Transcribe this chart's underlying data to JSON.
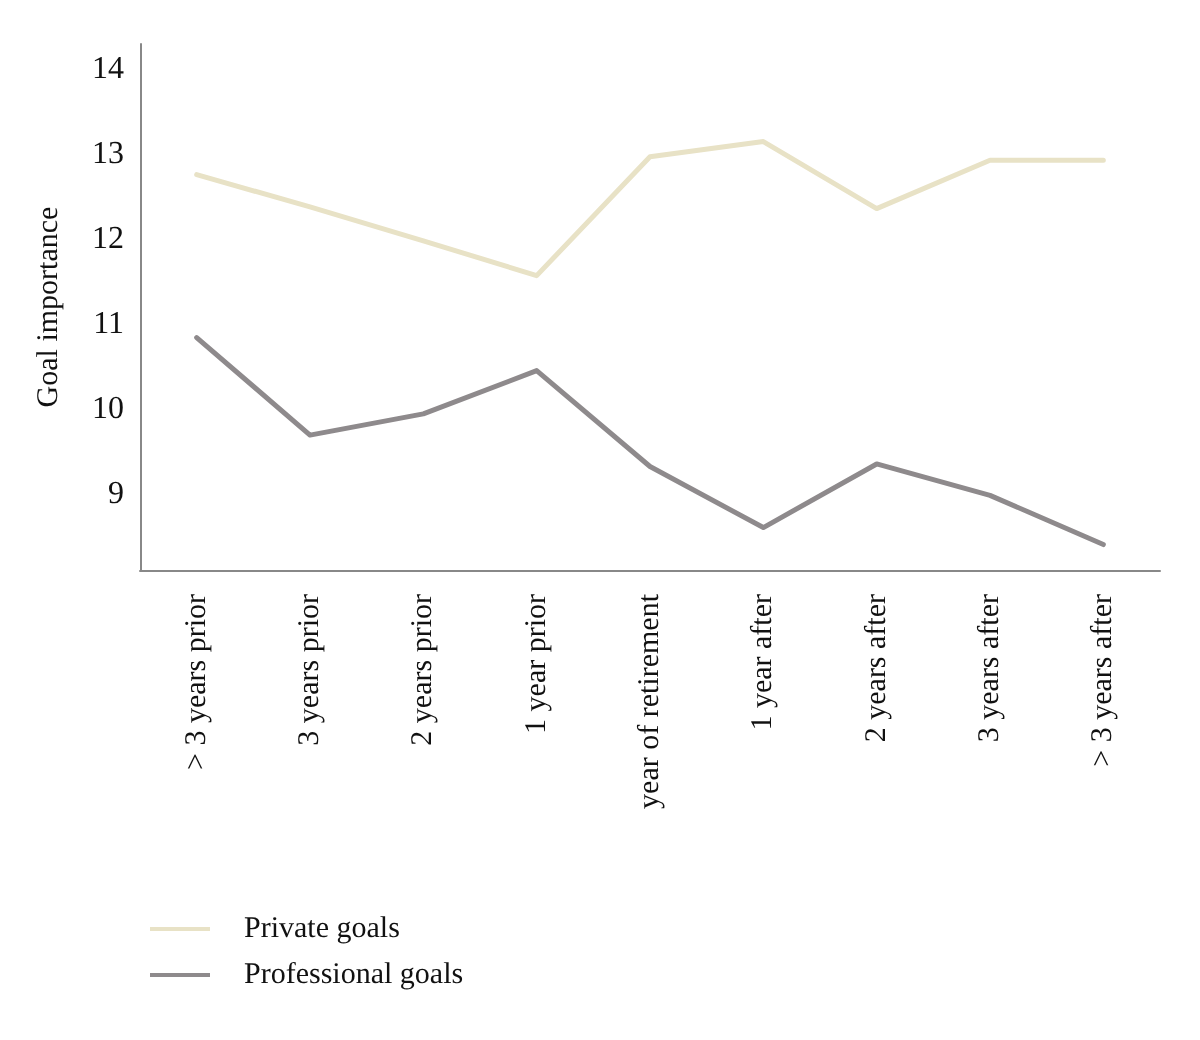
{
  "chart_data": {
    "type": "line",
    "ylabel": "Goal importance",
    "categories": [
      "> 3 years prior",
      "3 years prior",
      "2 years prior",
      "1 year prior",
      "year of retirement",
      "1 year after",
      "2 years after",
      "3 years after",
      "> 3 years after"
    ],
    "series": [
      {
        "name": "Private goals",
        "color": "#e8e2c6",
        "values": [
          12.76,
          12.38,
          11.98,
          11.57,
          12.97,
          13.15,
          12.36,
          12.93,
          12.93
        ]
      },
      {
        "name": "Professional goals",
        "color": "#8e8a8c",
        "values": [
          10.84,
          9.69,
          9.94,
          10.45,
          9.32,
          8.6,
          9.35,
          8.98,
          8.4
        ]
      }
    ],
    "ylim": [
      8.1,
      14.3
    ],
    "yticks": [
      9,
      10,
      11,
      12,
      13,
      14
    ],
    "grid": false,
    "legend": "bottom left",
    "marker": "none",
    "line_style": "solid"
  }
}
